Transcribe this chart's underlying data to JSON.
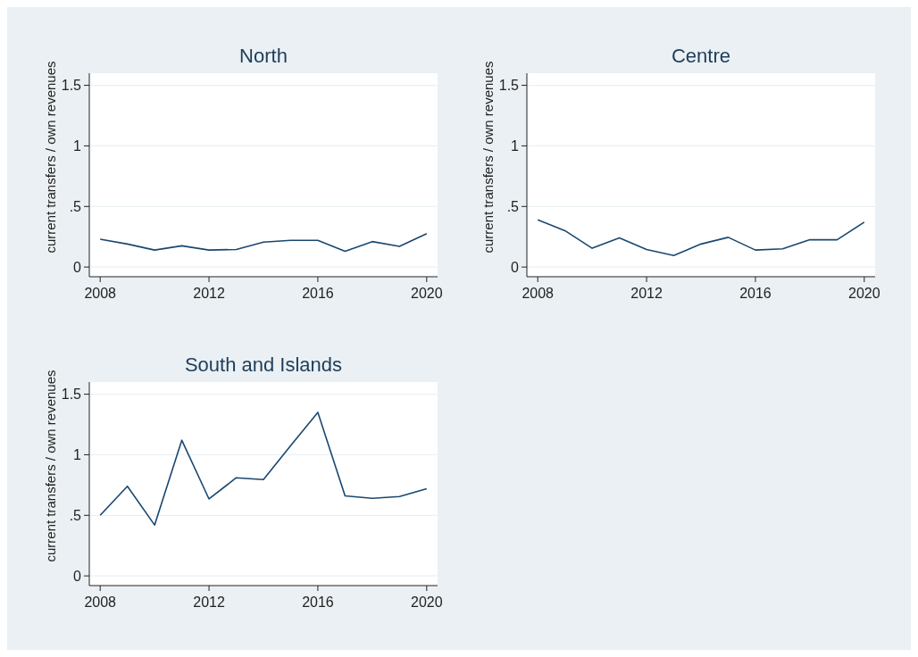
{
  "chart_data": [
    {
      "type": "line",
      "title": "North",
      "ylabel": "current transfers / own revenues",
      "x": [
        2008,
        2009,
        2010,
        2011,
        2012,
        2013,
        2014,
        2015,
        2016,
        2017,
        2018,
        2019,
        2020
      ],
      "series": [
        {
          "color": "#1a476f",
          "values": [
            0.23,
            0.19,
            0.14,
            0.175,
            0.14,
            0.145,
            0.205,
            0.22,
            0.22,
            0.13,
            0.21,
            0.17,
            0.275
          ]
        }
      ],
      "xlim": [
        2007.6,
        2020.4
      ],
      "xticks": [
        2008,
        2012,
        2016,
        2020
      ],
      "ylim": [
        -0.08,
        1.6
      ],
      "yticks": [
        {
          "value": 0,
          "label": "0"
        },
        {
          "value": 0.5,
          "label": ".5"
        },
        {
          "value": 1,
          "label": "1"
        },
        {
          "value": 1.5,
          "label": "1.5"
        }
      ],
      "grid": "y",
      "marker": "none"
    },
    {
      "type": "line",
      "title": "Centre",
      "ylabel": "current transfers / own revenues",
      "x": [
        2008,
        2009,
        2010,
        2011,
        2012,
        2013,
        2014,
        2015,
        2016,
        2017,
        2018,
        2019,
        2020
      ],
      "series": [
        {
          "color": "#1a476f",
          "values": [
            0.39,
            0.3,
            0.155,
            0.24,
            0.145,
            0.095,
            0.19,
            0.245,
            0.14,
            0.15,
            0.225,
            0.225,
            0.37
          ]
        }
      ],
      "xlim": [
        2007.6,
        2020.4
      ],
      "xticks": [
        2008,
        2012,
        2016,
        2020
      ],
      "ylim": [
        -0.08,
        1.6
      ],
      "yticks": [
        {
          "value": 0,
          "label": "0"
        },
        {
          "value": 0.5,
          "label": ".5"
        },
        {
          "value": 1,
          "label": "1"
        },
        {
          "value": 1.5,
          "label": "1.5"
        }
      ],
      "grid": "y",
      "marker": "none"
    },
    {
      "type": "line",
      "title": "South and Islands",
      "ylabel": "current transfers / own revenues",
      "x": [
        2008,
        2009,
        2010,
        2011,
        2012,
        2013,
        2014,
        2015,
        2016,
        2017,
        2018,
        2019,
        2020
      ],
      "series": [
        {
          "color": "#1a476f",
          "values": [
            0.5,
            0.74,
            0.42,
            1.12,
            0.635,
            0.81,
            0.795,
            1.075,
            1.35,
            0.66,
            0.64,
            0.655,
            0.72
          ]
        }
      ],
      "xlim": [
        2007.6,
        2020.4
      ],
      "xticks": [
        2008,
        2012,
        2016,
        2020
      ],
      "ylim": [
        -0.08,
        1.6
      ],
      "yticks": [
        {
          "value": 0,
          "label": "0"
        },
        {
          "value": 0.5,
          "label": ".5"
        },
        {
          "value": 1,
          "label": "1"
        },
        {
          "value": 1.5,
          "label": "1.5"
        }
      ],
      "grid": "y",
      "marker": "none"
    }
  ]
}
